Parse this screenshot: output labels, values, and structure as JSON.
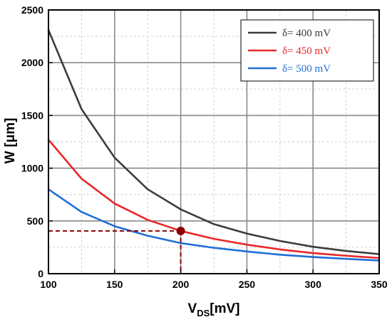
{
  "chart_data": {
    "type": "line",
    "xlabel_main": "V",
    "xlabel_sub": "DS",
    "xlabel_unit": "[mV]",
    "ylabel": "W [μm]",
    "xlim": [
      100,
      350
    ],
    "ylim": [
      0,
      2500
    ],
    "x_ticks": [
      100,
      150,
      200,
      250,
      300,
      350
    ],
    "y_ticks": [
      0,
      500,
      1000,
      1500,
      2000,
      2500
    ],
    "grid": true,
    "legend_position": "top-right",
    "x": [
      100,
      125,
      150,
      175,
      200,
      225,
      250,
      275,
      300,
      325,
      350
    ],
    "series": [
      {
        "name": "δ= 400 mV",
        "color": "#3c3c3c",
        "values": [
          2310,
          1560,
          1100,
          800,
          610,
          470,
          380,
          310,
          255,
          215,
          185
        ]
      },
      {
        "name": "δ= 450 mV",
        "color": "#e8282a",
        "values": [
          1270,
          900,
          665,
          510,
          405,
          330,
          275,
          230,
          195,
          170,
          148
        ]
      },
      {
        "name": "δ= 500 mV",
        "color": "#1f6fd6",
        "values": [
          800,
          585,
          450,
          360,
          290,
          245,
          210,
          180,
          158,
          140,
          125
        ]
      }
    ],
    "annotation": {
      "type": "marker-with-guides",
      "x": 200,
      "y": 405,
      "color": "#8b0000"
    }
  }
}
